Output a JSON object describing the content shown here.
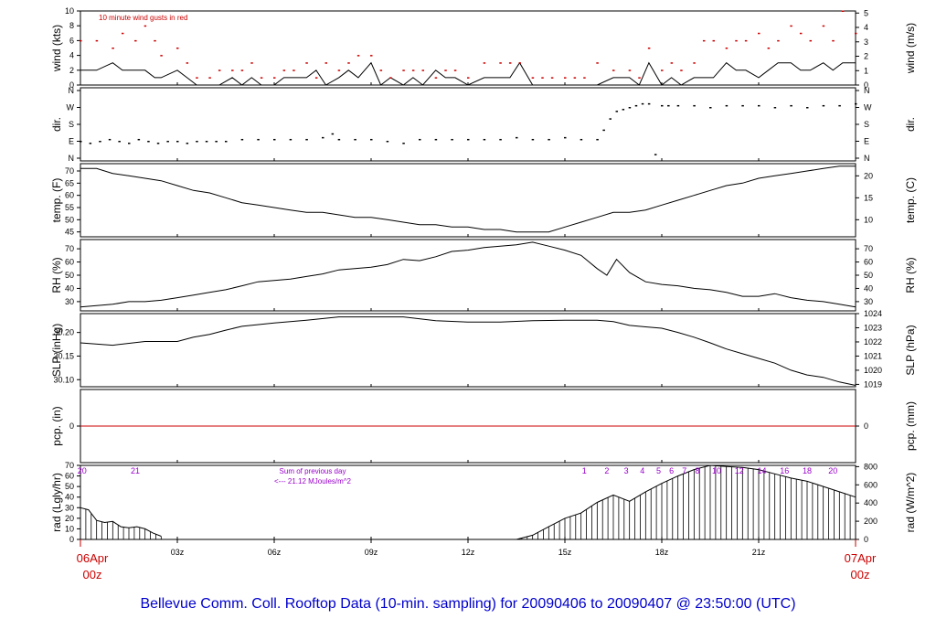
{
  "title": "Bellevue Comm. Coll. Rooftop Data (10-min. sampling) for 20090406  to  20090407 @ 23:50:00  (UTC)",
  "time_axis": {
    "start_day_label": "06Apr",
    "start_hour_label": "00z",
    "end_day_label": "07Apr",
    "end_hour_label": "00z",
    "tick_labels": [
      "03z",
      "06z",
      "09z",
      "12z",
      "15z",
      "18z",
      "21z"
    ],
    "color_edge_labels": "#cc0000"
  },
  "colors": {
    "gusts": "#cc0000",
    "precip_line": "#cc0000",
    "annotation": "#9900cc",
    "line": "#000000",
    "title": "#0000cc"
  },
  "chart_data": [
    {
      "type": "line",
      "id": "wind",
      "ylabel_left": "wind (kts)",
      "ylabel_right": "wind (m/s)",
      "annotation": "10  minute wind gusts in red",
      "ylim": [
        0,
        10
      ],
      "left_ticks": [
        0,
        2,
        4,
        6,
        8,
        10
      ],
      "right_ticks": [
        0,
        1,
        2,
        3,
        4,
        5
      ],
      "right_tick_kts": [
        0,
        1.94,
        3.89,
        5.83,
        7.78,
        9.72
      ],
      "x_hours": [
        0,
        0.5,
        1,
        1.3,
        1.7,
        2,
        2.3,
        2.5,
        3,
        3.3,
        3.6,
        4,
        4.3,
        4.7,
        5,
        5.3,
        5.6,
        6,
        6.3,
        6.6,
        7,
        7.3,
        7.6,
        8,
        8.3,
        8.6,
        9,
        9.3,
        9.6,
        10,
        10.3,
        10.6,
        11,
        11.3,
        11.6,
        12,
        12.5,
        13,
        13.3,
        13.6,
        14,
        14.3,
        14.6,
        15,
        15.3,
        15.6,
        16,
        16.5,
        17,
        17.3,
        17.6,
        18,
        18.3,
        18.6,
        19,
        19.3,
        19.6,
        20,
        20.3,
        20.6,
        21,
        21.3,
        21.6,
        22,
        22.3,
        22.6,
        23,
        23.3,
        23.6,
        24
      ],
      "speed_kts": [
        2,
        2,
        3,
        2,
        2,
        2,
        1,
        1,
        2,
        1,
        0,
        0,
        0,
        1,
        0,
        1,
        0,
        0,
        1,
        1,
        1,
        2,
        0,
        1,
        2,
        1,
        3,
        0,
        1,
        0,
        1,
        0,
        2,
        1,
        1,
        0,
        1,
        1,
        1,
        3,
        0,
        0,
        0,
        0,
        0,
        0,
        0,
        1,
        1,
        0,
        3,
        0,
        1,
        0,
        1,
        1,
        1,
        3,
        2,
        2,
        1,
        2,
        3,
        3,
        2,
        2,
        3,
        2,
        3,
        3
      ],
      "gust_kts": [
        6,
        6,
        5,
        7,
        6,
        8,
        6,
        4,
        5,
        3,
        1,
        1,
        2,
        2,
        2,
        3,
        1,
        1,
        2,
        2,
        3,
        1,
        3,
        2,
        3,
        4,
        4,
        2,
        1,
        2,
        2,
        2,
        1,
        2,
        2,
        1,
        3,
        3,
        3,
        3,
        1,
        1,
        1,
        1,
        1,
        1,
        3,
        2,
        2,
        1,
        5,
        2,
        3,
        2,
        3,
        6,
        6,
        5,
        6,
        6,
        7,
        5,
        6,
        8,
        7,
        6,
        8,
        6,
        10,
        7
      ]
    },
    {
      "type": "scatter",
      "id": "dir",
      "ylabel_left": "dir.",
      "ylabel_right": "dir.",
      "categories": [
        "N",
        "E",
        "S",
        "W",
        "N"
      ],
      "ylim": [
        0,
        360
      ],
      "x_hours": [
        0,
        0.3,
        0.6,
        0.9,
        1.2,
        1.5,
        1.8,
        2.1,
        2.4,
        2.7,
        3,
        3.3,
        3.6,
        3.9,
        4.2,
        4.5,
        5,
        5.5,
        6,
        6.5,
        7,
        7.5,
        7.8,
        8,
        8.5,
        9,
        9.5,
        10,
        10.5,
        11,
        11.5,
        12,
        12.5,
        13,
        13.5,
        14,
        14.5,
        15,
        15.5,
        16,
        16.2,
        16.4,
        16.6,
        16.8,
        17,
        17.2,
        17.4,
        17.6,
        17.8,
        18,
        18.2,
        18.5,
        19,
        19.5,
        20,
        20.5,
        21,
        21.5,
        22,
        22.5,
        23,
        23.5,
        24
      ],
      "dir_deg": [
        90,
        80,
        90,
        100,
        90,
        80,
        100,
        90,
        80,
        90,
        90,
        80,
        90,
        90,
        90,
        90,
        100,
        100,
        100,
        100,
        100,
        110,
        130,
        100,
        100,
        100,
        90,
        80,
        100,
        100,
        100,
        100,
        100,
        100,
        110,
        100,
        100,
        110,
        100,
        100,
        150,
        210,
        250,
        260,
        270,
        280,
        290,
        290,
        20,
        280,
        280,
        280,
        280,
        270,
        280,
        280,
        280,
        270,
        280,
        270,
        280,
        280,
        290
      ]
    },
    {
      "type": "line",
      "id": "temp",
      "ylabel_left": "temp. (F)",
      "ylabel_right": "temp. (C)",
      "ylim": [
        43,
        73
      ],
      "left_ticks": [
        45,
        50,
        55,
        60,
        65,
        70
      ],
      "right_ticks": [
        10,
        15,
        20
      ],
      "right_tick_f": [
        50,
        59,
        68
      ],
      "x_hours": [
        0,
        0.5,
        1,
        1.5,
        2,
        2.5,
        3,
        3.5,
        4,
        4.5,
        5,
        5.5,
        6,
        6.5,
        7,
        7.5,
        8,
        8.5,
        9,
        9.5,
        10,
        10.5,
        11,
        11.5,
        12,
        12.5,
        13,
        13.5,
        14,
        14.5,
        15,
        15.5,
        16,
        16.5,
        17,
        17.5,
        18,
        18.5,
        19,
        19.5,
        20,
        20.5,
        21,
        21.5,
        22,
        22.5,
        23,
        23.5,
        24
      ],
      "temp_f": [
        71,
        71,
        69,
        68,
        67,
        66,
        64,
        62,
        61,
        59,
        57,
        56,
        55,
        54,
        53,
        53,
        52,
        51,
        51,
        50,
        49,
        48,
        48,
        47,
        47,
        46,
        46,
        45,
        45,
        45,
        47,
        49,
        51,
        53,
        53,
        54,
        56,
        58,
        60,
        62,
        64,
        65,
        67,
        68,
        69,
        70,
        71,
        72,
        72
      ]
    },
    {
      "type": "line",
      "id": "rh",
      "ylabel_left": "RH (%)",
      "ylabel_right": "RH (%)",
      "ylim": [
        23,
        77
      ],
      "left_ticks": [
        30,
        40,
        50,
        60,
        70
      ],
      "right_ticks": [
        30,
        40,
        50,
        60,
        70
      ],
      "x_hours": [
        0,
        0.5,
        1,
        1.5,
        2,
        2.5,
        3,
        3.5,
        4,
        4.5,
        5,
        5.5,
        6,
        6.5,
        7,
        7.5,
        8,
        8.5,
        9,
        9.5,
        10,
        10.5,
        11,
        11.5,
        12,
        12.5,
        13,
        13.5,
        14,
        14.5,
        15,
        15.5,
        16,
        16.3,
        16.6,
        17,
        17.5,
        18,
        18.5,
        19,
        19.5,
        20,
        20.5,
        21,
        21.5,
        22,
        22.5,
        23,
        23.5,
        24
      ],
      "rh_pct": [
        26,
        27,
        28,
        30,
        30,
        31,
        33,
        35,
        37,
        39,
        42,
        45,
        46,
        47,
        49,
        51,
        54,
        55,
        56,
        58,
        62,
        61,
        64,
        68,
        69,
        71,
        72,
        73,
        75,
        72,
        69,
        65,
        55,
        50,
        62,
        52,
        45,
        43,
        42,
        40,
        39,
        37,
        34,
        34,
        36,
        33,
        31,
        30,
        28,
        26
      ]
    },
    {
      "type": "line",
      "id": "slp",
      "ylabel_left": "SLP (inHg)",
      "ylabel_right": "SLP (hPa)",
      "ylim": [
        30.085,
        30.24
      ],
      "left_ticks": [
        30.1,
        30.15,
        30.2
      ],
      "right_ticks": [
        1019,
        1020,
        1021,
        1022,
        1023,
        1024
      ],
      "right_tick_inhg": [
        30.09,
        30.12,
        30.15,
        30.18,
        30.21,
        30.24
      ],
      "x_hours": [
        0,
        1,
        2,
        3,
        3.5,
        4,
        4.5,
        5,
        6,
        7,
        8,
        9,
        10,
        11,
        12,
        13,
        14,
        15,
        16,
        16.5,
        17,
        17.5,
        18,
        18.5,
        19,
        19.5,
        20,
        20.5,
        21,
        21.5,
        22,
        22.5,
        23,
        23.5,
        24
      ],
      "slp_inhg": [
        30.178,
        30.173,
        30.181,
        30.181,
        30.19,
        30.196,
        30.205,
        30.213,
        30.22,
        30.226,
        30.233,
        30.233,
        30.233,
        30.225,
        30.222,
        30.222,
        30.225,
        30.226,
        30.226,
        30.223,
        30.215,
        30.212,
        30.209,
        30.2,
        30.19,
        30.178,
        30.165,
        30.155,
        30.145,
        30.135,
        30.12,
        30.11,
        30.105,
        30.095,
        30.088
      ]
    },
    {
      "type": "line",
      "id": "precip",
      "ylabel_left": "pcp. (in)",
      "ylabel_right": "pcp. (mm)",
      "ylim": [
        -1,
        1
      ],
      "left_ticks": [
        0
      ],
      "right_ticks": [
        0
      ],
      "x_hours": [
        0,
        24
      ],
      "pcp_in": [
        0,
        0
      ]
    },
    {
      "type": "bar",
      "id": "rad",
      "ylabel_left": "rad (Lgly/hr)",
      "ylabel_right": "rad (W/m^2)",
      "annotation_line1": "Sum of previous day",
      "annotation_line2": "<--- 21.12 MJoules/m^2",
      "ylim": [
        0,
        70
      ],
      "left_ticks": [
        0,
        10,
        20,
        30,
        40,
        50,
        60,
        70
      ],
      "right_ticks": [
        0,
        200,
        400,
        600,
        800
      ],
      "right_tick_lgly": [
        0,
        17.2,
        34.4,
        51.6,
        68.8
      ],
      "local_hour_labels": [
        "20",
        "21",
        "1",
        "2",
        "3",
        "4",
        "5",
        "6",
        "7",
        "8",
        "10",
        "12",
        "14",
        "16",
        "18",
        "20"
      ],
      "local_hour_x_hours": [
        0.05,
        1.7,
        15.6,
        16.3,
        16.9,
        17.4,
        17.9,
        18.3,
        18.7,
        19.1,
        19.7,
        20.4,
        21.1,
        21.8,
        22.5,
        23.3
      ],
      "x_hours": [
        0,
        0.25,
        0.5,
        0.75,
        1,
        1.25,
        1.5,
        1.75,
        2,
        2.25,
        2.5,
        13.5,
        14,
        14.5,
        15,
        15.5,
        16,
        16.5,
        17,
        17.5,
        18,
        18.5,
        19,
        19.5,
        20,
        20.5,
        21,
        21.5,
        22,
        22.5,
        23,
        23.5,
        24
      ],
      "rad_lgly": [
        30,
        28,
        18,
        16,
        17,
        12,
        11,
        12,
        10,
        6,
        3,
        0,
        4,
        12,
        20,
        25,
        35,
        42,
        36,
        45,
        53,
        60,
        66,
        70,
        69,
        68,
        66,
        62,
        58,
        55,
        50,
        45,
        40
      ]
    }
  ]
}
